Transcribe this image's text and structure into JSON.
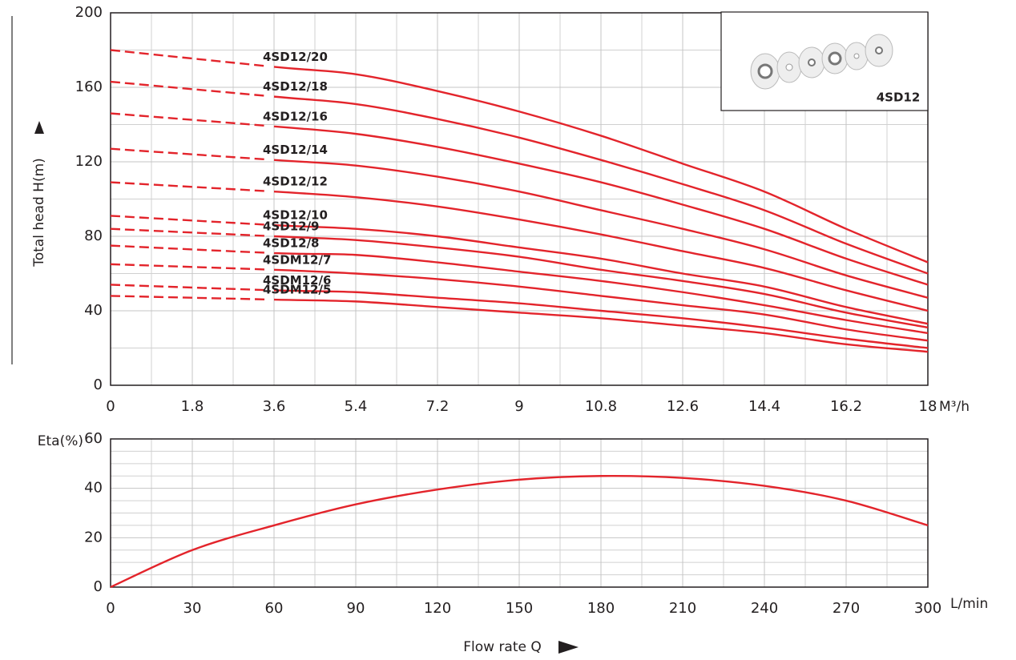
{
  "chart_data": [
    {
      "type": "line",
      "y_label": "Total head H(m)",
      "x_unit": "M³/h",
      "inset_label": "4SD12",
      "x": [
        0,
        3.6,
        5.4,
        7.2,
        9,
        10.8,
        12.6,
        14.4,
        16.2,
        18
      ],
      "xlim": [
        0,
        18
      ],
      "xticks": [
        0,
        1.8,
        3.6,
        5.4,
        7.2,
        9,
        10.8,
        12.6,
        14.4,
        16.2,
        18
      ],
      "ylim": [
        0,
        200
      ],
      "yticks": [
        0,
        40,
        80,
        120,
        160,
        200
      ],
      "grid": true,
      "minor_x": 2,
      "minor_y": 2,
      "dashed_start": true,
      "series": [
        {
          "name": "4SD12/20",
          "color": "#e3242b",
          "values": [
            180,
            171,
            167,
            158,
            147,
            134,
            119,
            104,
            84,
            66
          ]
        },
        {
          "name": "4SD12/18",
          "color": "#e3242b",
          "values": [
            163,
            155,
            151,
            143,
            133,
            121,
            108,
            94,
            76,
            60
          ]
        },
        {
          "name": "4SD12/16",
          "color": "#e3242b",
          "values": [
            146,
            139,
            135,
            128,
            119,
            109,
            97,
            84,
            68,
            54
          ]
        },
        {
          "name": "4SD12/14",
          "color": "#e3242b",
          "values": [
            127,
            121,
            118,
            112,
            104,
            94,
            84,
            73,
            59,
            47
          ]
        },
        {
          "name": "4SD12/12",
          "color": "#e3242b",
          "values": [
            109,
            104,
            101,
            96,
            89,
            81,
            72,
            63,
            51,
            40
          ]
        },
        {
          "name": "4SD12/10",
          "color": "#e3242b",
          "values": [
            91,
            86,
            84,
            80,
            74,
            68,
            60,
            53,
            42,
            33
          ]
        },
        {
          "name": "4SD12/9",
          "color": "#e3242b",
          "values": [
            84,
            80,
            78,
            74,
            69,
            62,
            56,
            49,
            39,
            31
          ]
        },
        {
          "name": "4SD12/8",
          "color": "#e3242b",
          "values": [
            75,
            71,
            70,
            66,
            61,
            56,
            50,
            43,
            35,
            28
          ]
        },
        {
          "name": "4SDM12/7",
          "color": "#e3242b",
          "values": [
            65,
            62,
            60,
            57,
            53,
            48,
            43,
            38,
            30,
            24
          ]
        },
        {
          "name": "4SDM12/6",
          "color": "#e3242b",
          "values": [
            54,
            51,
            50,
            47,
            44,
            40,
            36,
            31,
            25,
            20
          ]
        },
        {
          "name": "4SDM12/5",
          "color": "#e3242b",
          "values": [
            48,
            46,
            45,
            42,
            39,
            36,
            32,
            28,
            22,
            18
          ]
        }
      ]
    },
    {
      "type": "line",
      "y_label": "Eta(%)",
      "x_unit": "L/min",
      "x_label": "Flow rate Q",
      "x": [
        0,
        30,
        60,
        90,
        120,
        150,
        180,
        210,
        240,
        270,
        300
      ],
      "values": [
        0,
        15,
        25,
        33.5,
        39.5,
        43.5,
        45,
        44.2,
        41,
        35,
        25
      ],
      "color": "#e3242b",
      "xlim": [
        0,
        300
      ],
      "xticks": [
        0,
        30,
        60,
        90,
        120,
        150,
        180,
        210,
        240,
        270,
        300
      ],
      "ylim": [
        0,
        60
      ],
      "yticks": [
        0,
        20,
        40,
        60
      ],
      "grid": true,
      "minor_x": 2,
      "minor_y": 4
    }
  ]
}
